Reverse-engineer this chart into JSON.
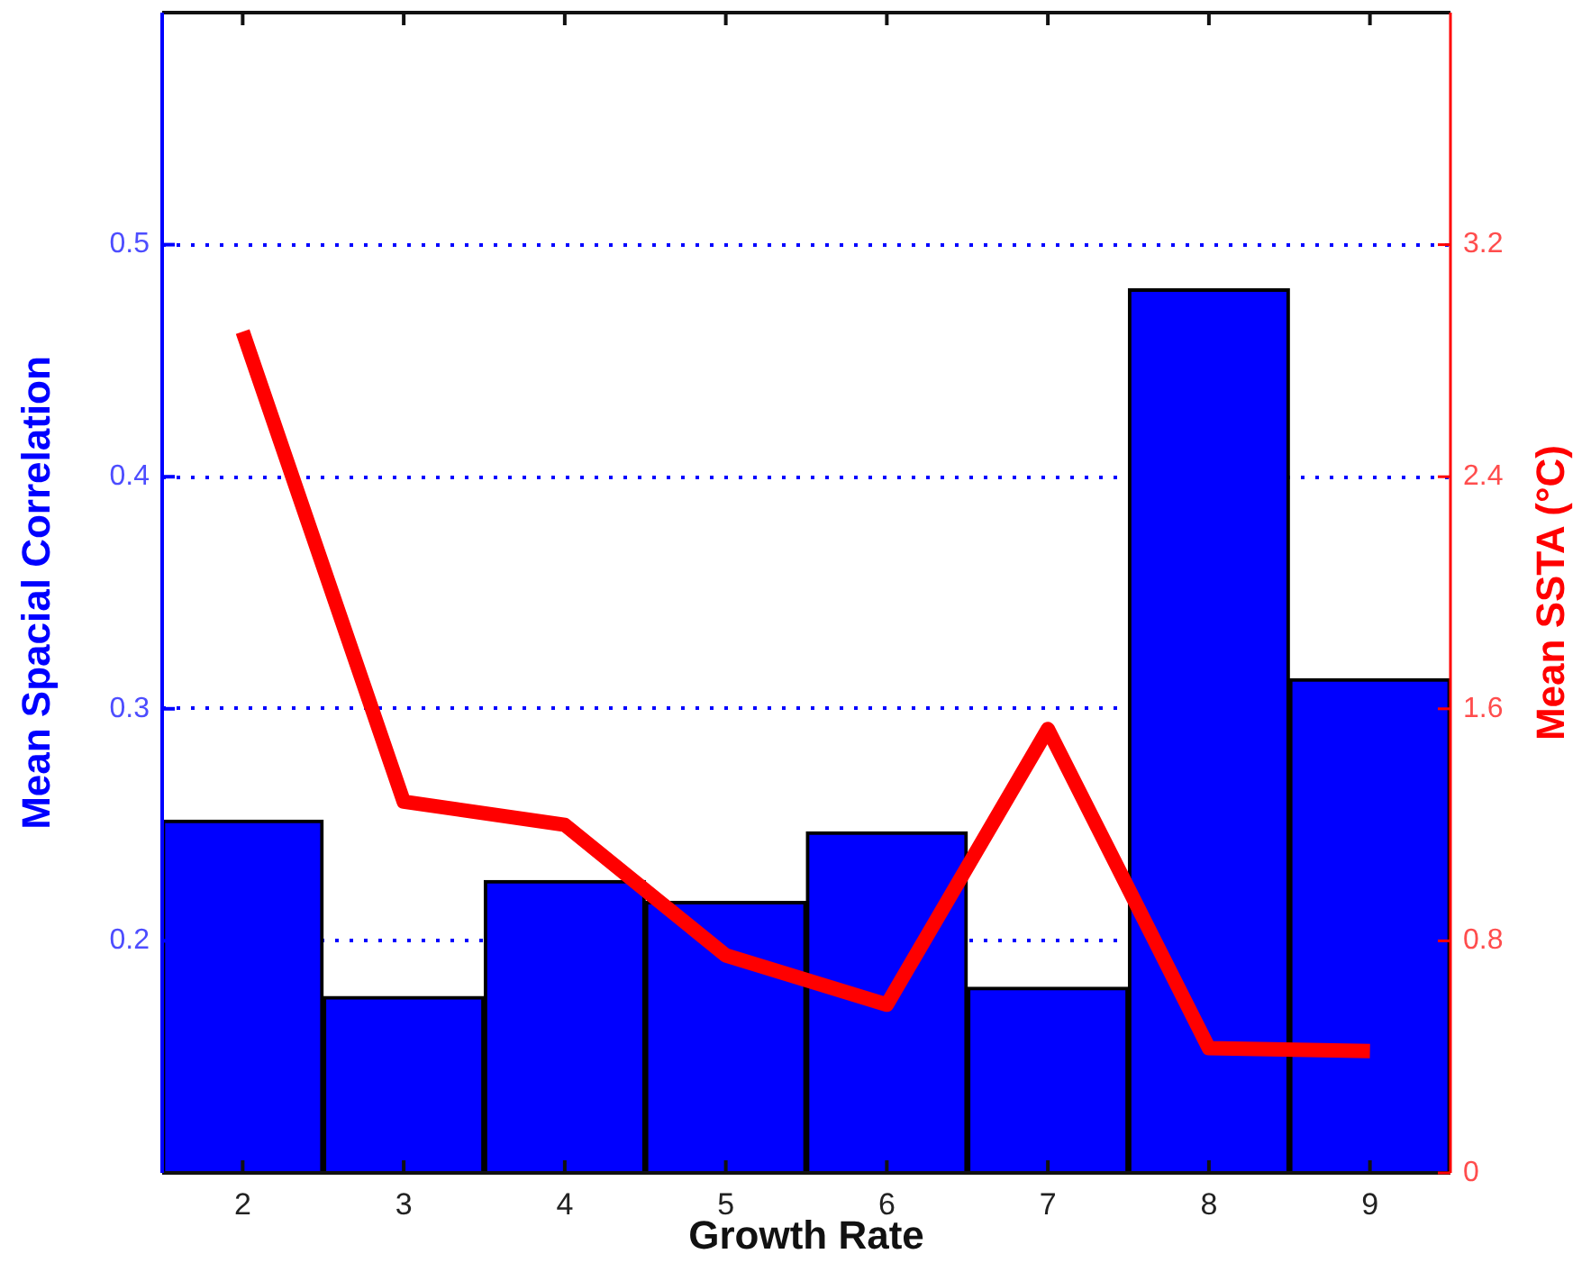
{
  "chart_data": {
    "type": "bar",
    "xlabel": "Growth Rate",
    "ylabel": "Mean Spacial Correlation",
    "y2label": "Mean SSTA (°C)",
    "categories": [
      "2",
      "3",
      "4",
      "5",
      "6",
      "7",
      "8",
      "9"
    ],
    "series": [
      {
        "color": "#0000ff",
        "values": [
          0.252,
          0.176,
          0.226,
          0.217,
          0.247,
          0.18,
          0.481,
          0.313
        ]
      },
      {
        "type": "line",
        "axis": "y2",
        "color": "#ff0000",
        "values": [
          2.9,
          1.28,
          1.2,
          0.75,
          0.58,
          1.53,
          0.43,
          0.42
        ]
      }
    ],
    "ylim": [
      0.1,
      0.6
    ],
    "yticks": [
      0.2,
      0.3,
      0.4,
      0.5
    ],
    "y2lim": [
      0,
      4
    ],
    "y2ticks": [
      0,
      0.8,
      1.6,
      2.4,
      3.2
    ],
    "grid": "y",
    "marker": "none",
    "legend": false
  }
}
